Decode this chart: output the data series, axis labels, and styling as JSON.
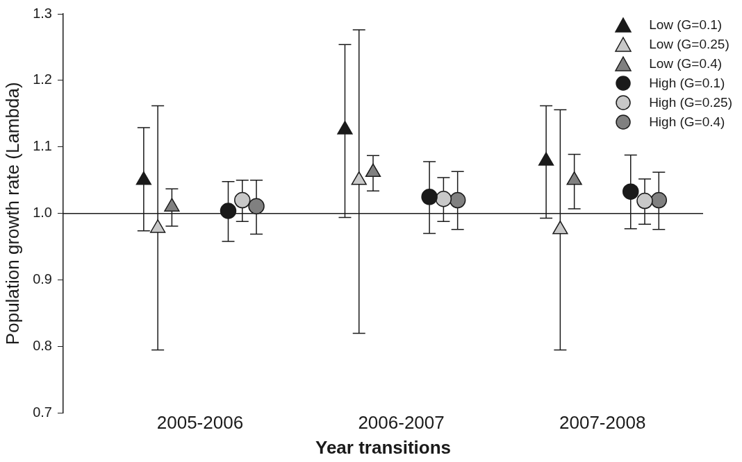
{
  "chart_data": {
    "type": "scatter",
    "xlabel": "Year transitions",
    "ylabel": "Population growth rate (Lambda)",
    "categories": [
      "2005-2006",
      "2006-2007",
      "2007-2008"
    ],
    "ylim": [
      0.7,
      1.3
    ],
    "yticks": [
      0.7,
      0.8,
      0.9,
      {
        "value": 1,
        "label": "1.0"
      },
      1.1,
      1.2,
      1.3
    ],
    "grid": false,
    "legend": "top right",
    "ref_lines": [
      {
        "axis": "y",
        "value": 1,
        "color": "#1a1a1a"
      }
    ],
    "series": [
      {
        "name": "Low (G=0.1)",
        "color": "#1a1a1a",
        "marker": "triangle",
        "values": [
          1.05,
          1.126,
          1.079
        ],
        "errors": [
          [
            0.974,
            1.129
          ],
          [
            0.994,
            1.254
          ],
          [
            0.993,
            1.162
          ]
        ]
      },
      {
        "name": "Low (G=0.25)",
        "color": "#c8c8c8",
        "marker": "triangle",
        "values": [
          0.978,
          1.05,
          0.976
        ],
        "errors": [
          [
            0.795,
            1.162
          ],
          [
            0.82,
            1.276
          ],
          [
            0.795,
            1.156
          ]
        ]
      },
      {
        "name": "Low (G=0.4)",
        "color": "#808080",
        "marker": "triangle",
        "values": [
          1.01,
          1.062,
          1.05
        ],
        "errors": [
          [
            0.981,
            1.037
          ],
          [
            1.034,
            1.087
          ],
          [
            1.007,
            1.089
          ]
        ]
      },
      {
        "name": "High (G=0.1)",
        "color": "#1a1a1a",
        "marker": "circle",
        "values": [
          1.004,
          1.025,
          1.033
        ],
        "errors": [
          [
            0.958,
            1.048
          ],
          [
            0.97,
            1.078
          ],
          [
            0.977,
            1.088
          ]
        ]
      },
      {
        "name": "High (G=0.25)",
        "color": "#c8c8c8",
        "marker": "circle",
        "values": [
          1.02,
          1.022,
          1.019
        ],
        "errors": [
          [
            0.988,
            1.05
          ],
          [
            0.988,
            1.054
          ],
          [
            0.984,
            1.052
          ]
        ]
      },
      {
        "name": "High (G=0.4)",
        "color": "#808080",
        "marker": "circle",
        "values": [
          1.011,
          1.02,
          1.02
        ],
        "errors": [
          [
            0.969,
            1.05
          ],
          [
            0.976,
            1.063
          ],
          [
            0.976,
            1.062
          ]
        ]
      }
    ]
  }
}
